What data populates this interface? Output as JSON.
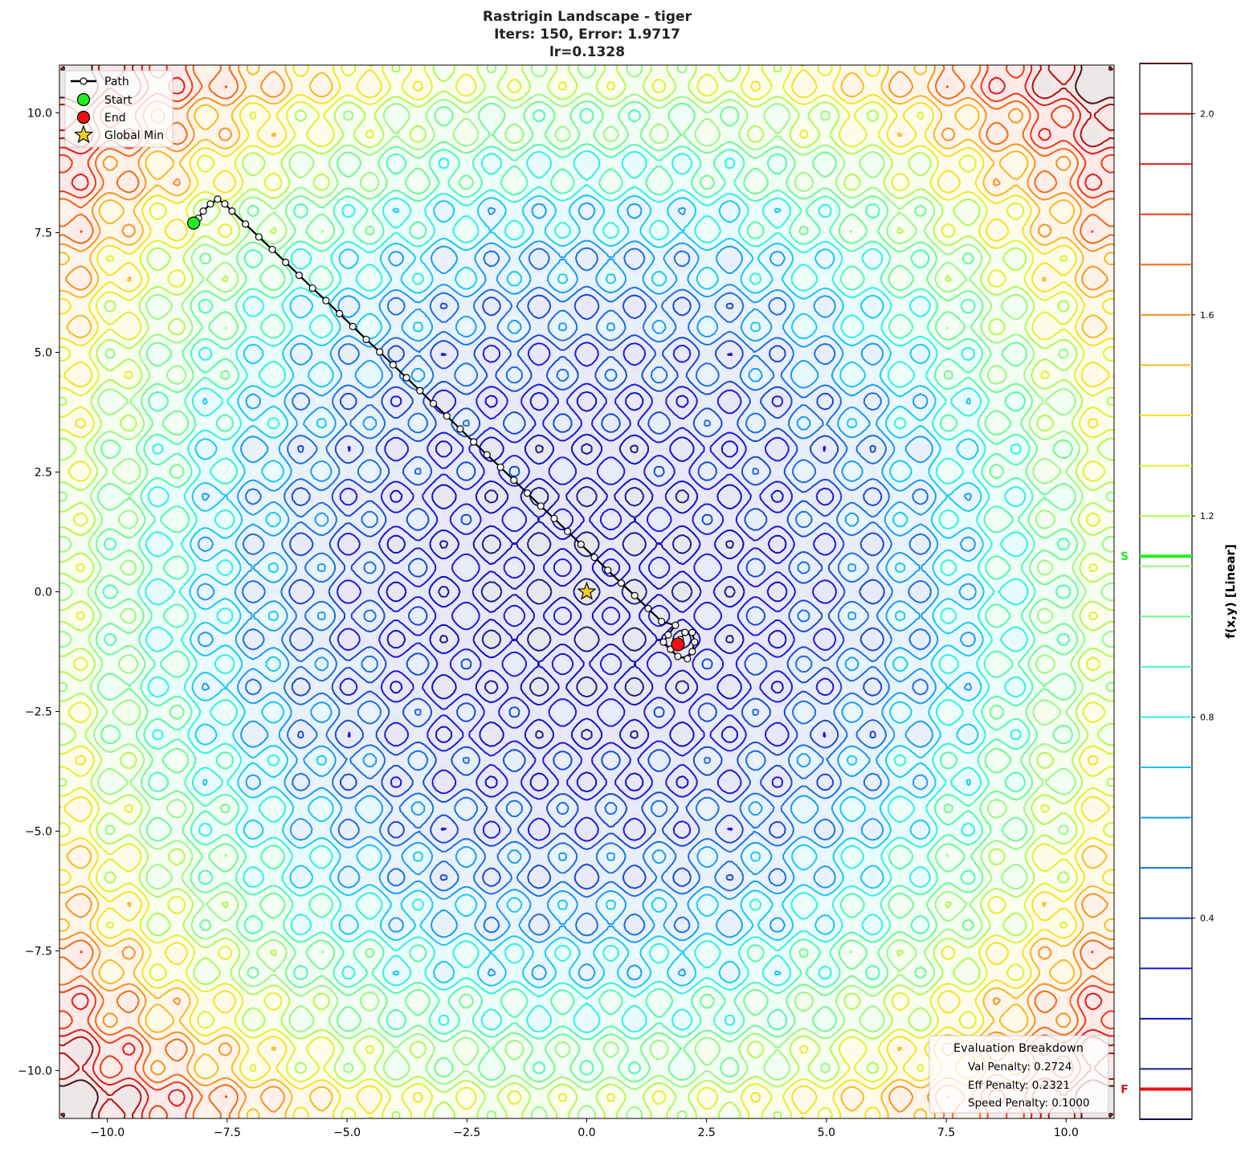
{
  "chart_data": {
    "type": "contour",
    "title_lines": [
      "Rastrigin Landscape - tiger",
      "Iters: 150, Error: 1.9717",
      "lr=0.1328"
    ],
    "function": "rastrigin",
    "xlim": [
      -11,
      11
    ],
    "ylim": [
      -11,
      11
    ],
    "xticks": [
      -10.0,
      -7.5,
      -5.0,
      -2.5,
      0.0,
      2.5,
      5.0,
      7.5,
      10.0
    ],
    "yticks": [
      -10.0,
      -7.5,
      -5.0,
      -2.5,
      0.0,
      2.5,
      5.0,
      7.5,
      10.0
    ],
    "grid": false,
    "colorbar": {
      "label": "f(x,y) [Linear]",
      "range": [
        0.0,
        2.1
      ],
      "ticks": [
        0.4,
        0.8,
        1.2,
        1.6,
        2.0
      ],
      "levels": [
        0.0,
        0.1,
        0.2,
        0.3,
        0.4,
        0.5,
        0.6,
        0.7,
        0.8,
        0.9,
        1.0,
        1.1,
        1.2,
        1.3,
        1.4,
        1.5,
        1.6,
        1.7,
        1.8,
        1.9,
        2.0,
        2.1
      ],
      "level_colors": [
        "#0a0a40",
        "#1a1a8a",
        "#1010c0",
        "#1a1ad8",
        "#1848d0",
        "#1a6ee0",
        "#1a9af0",
        "#18c8f0",
        "#30f0e0",
        "#50f8b0",
        "#70f890",
        "#98f880",
        "#b0f850",
        "#e0f030",
        "#f8e020",
        "#f8b820",
        "#f89020",
        "#f06818",
        "#f03818",
        "#e01818",
        "#b01010",
        "#501010"
      ],
      "markers": [
        {
          "label": "S",
          "value": 1.12,
          "color": "#22ee22"
        },
        {
          "label": "F",
          "value": 0.06,
          "color": "#ee1111"
        }
      ]
    },
    "legend": {
      "placement": "top-left",
      "entries": [
        "Path",
        "Start",
        "End",
        "Global Min"
      ]
    },
    "start": [
      -8.2,
      7.7
    ],
    "end": [
      1.9,
      -1.1
    ],
    "global_min": [
      0.0,
      0.0
    ],
    "path": [
      [
        -8.2,
        7.7
      ],
      [
        -8.1,
        7.8
      ],
      [
        -8.0,
        7.95
      ],
      [
        -7.85,
        8.1
      ],
      [
        -7.7,
        8.2
      ],
      [
        -7.55,
        8.1
      ],
      [
        -7.4,
        7.95
      ],
      [
        -7.12,
        7.68
      ],
      [
        -6.84,
        7.41
      ],
      [
        -6.56,
        7.15
      ],
      [
        -6.28,
        6.88
      ],
      [
        -6.0,
        6.61
      ],
      [
        -5.72,
        6.34
      ],
      [
        -5.44,
        6.08
      ],
      [
        -5.16,
        5.81
      ],
      [
        -4.88,
        5.54
      ],
      [
        -4.6,
        5.27
      ],
      [
        -4.32,
        5.01
      ],
      [
        -4.04,
        4.74
      ],
      [
        -3.76,
        4.47
      ],
      [
        -3.48,
        4.2
      ],
      [
        -3.2,
        3.93
      ],
      [
        -2.92,
        3.67
      ],
      [
        -2.64,
        3.4
      ],
      [
        -2.36,
        3.13
      ],
      [
        -2.08,
        2.86
      ],
      [
        -1.8,
        2.6
      ],
      [
        -1.52,
        2.33
      ],
      [
        -1.24,
        2.06
      ],
      [
        -0.96,
        1.79
      ],
      [
        -0.68,
        1.53
      ],
      [
        -0.4,
        1.26
      ],
      [
        -0.12,
        0.99
      ],
      [
        0.16,
        0.72
      ],
      [
        0.44,
        0.45
      ],
      [
        0.72,
        0.18
      ],
      [
        1.0,
        -0.08
      ],
      [
        1.28,
        -0.35
      ],
      [
        1.56,
        -0.62
      ],
      [
        1.85,
        -0.7
      ],
      [
        1.7,
        -0.9
      ],
      [
        1.6,
        -1.05
      ],
      [
        1.75,
        -1.2
      ],
      [
        1.9,
        -1.35
      ],
      [
        2.1,
        -1.4
      ],
      [
        2.2,
        -1.25
      ],
      [
        2.25,
        -1.05
      ],
      [
        2.2,
        -0.85
      ],
      [
        2.05,
        -0.85
      ],
      [
        1.95,
        -1.0
      ],
      [
        1.9,
        -1.1
      ]
    ],
    "annotation": {
      "title": "Evaluation Breakdown",
      "lines": [
        "Val Penalty: 0.2724",
        "Eff Penalty: 0.2321",
        "Speed Penalty: 0.1000"
      ],
      "placement": "bottom-right"
    }
  }
}
